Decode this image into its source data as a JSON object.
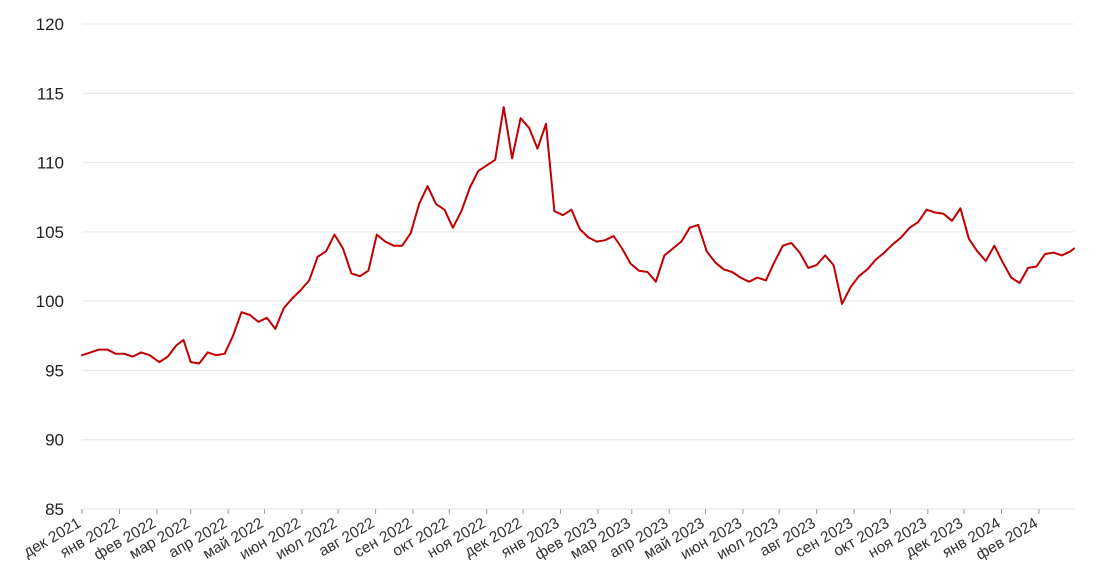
{
  "chart_data": {
    "type": "line",
    "title": "",
    "xlabel": "",
    "ylabel": "",
    "ylim": [
      85,
      120
    ],
    "yticks": [
      85,
      90,
      95,
      100,
      105,
      110,
      115,
      120
    ],
    "grid": true,
    "legend": "none",
    "x_tick_labels": [
      "дек 2021",
      "янв 2022",
      "фев 2022",
      "мар 2022",
      "апр 2022",
      "май 2022",
      "июн 2022",
      "июл 2022",
      "авг 2022",
      "сен 2022",
      "окт 2022",
      "ноя 2022",
      "дек 2022",
      "янв 2023",
      "фев 2023",
      "мар 2023",
      "апр 2023",
      "май 2023",
      "июн 2023",
      "июл 2023",
      "авг 2023",
      "сен 2023",
      "окт 2023",
      "ноя 2023",
      "дек 2023",
      "янв 2024",
      "фев 2024"
    ],
    "series": [
      {
        "color": "#c00000",
        "points": [
          [
            "2021-12-01",
            96.1
          ],
          [
            "2021-12-08",
            96.3
          ],
          [
            "2021-12-15",
            96.5
          ],
          [
            "2021-12-22",
            96.5
          ],
          [
            "2021-12-29",
            96.2
          ],
          [
            "2022-01-05",
            96.2
          ],
          [
            "2022-01-12",
            96.0
          ],
          [
            "2022-01-19",
            96.3
          ],
          [
            "2022-01-26",
            96.1
          ],
          [
            "2022-02-03",
            95.6
          ],
          [
            "2022-02-10",
            96.0
          ],
          [
            "2022-02-17",
            96.8
          ],
          [
            "2022-02-23",
            97.2
          ],
          [
            "2022-03-01",
            95.6
          ],
          [
            "2022-03-08",
            95.5
          ],
          [
            "2022-03-15",
            96.3
          ],
          [
            "2022-03-22",
            96.1
          ],
          [
            "2022-03-29",
            96.2
          ],
          [
            "2022-04-05",
            97.5
          ],
          [
            "2022-04-12",
            99.2
          ],
          [
            "2022-04-19",
            99.0
          ],
          [
            "2022-04-26",
            98.5
          ],
          [
            "2022-05-03",
            98.8
          ],
          [
            "2022-05-10",
            98.0
          ],
          [
            "2022-05-17",
            99.5
          ],
          [
            "2022-05-24",
            100.2
          ],
          [
            "2022-05-31",
            100.8
          ],
          [
            "2022-06-07",
            101.5
          ],
          [
            "2022-06-14",
            103.2
          ],
          [
            "2022-06-21",
            103.6
          ],
          [
            "2022-06-28",
            104.8
          ],
          [
            "2022-07-05",
            103.8
          ],
          [
            "2022-07-12",
            102.0
          ],
          [
            "2022-07-19",
            101.8
          ],
          [
            "2022-07-26",
            102.2
          ],
          [
            "2022-08-02",
            104.8
          ],
          [
            "2022-08-09",
            104.3
          ],
          [
            "2022-08-16",
            104.0
          ],
          [
            "2022-08-23",
            104.0
          ],
          [
            "2022-08-30",
            104.9
          ],
          [
            "2022-09-06",
            107.0
          ],
          [
            "2022-09-13",
            108.3
          ],
          [
            "2022-09-20",
            107.0
          ],
          [
            "2022-09-27",
            106.6
          ],
          [
            "2022-10-04",
            105.3
          ],
          [
            "2022-10-11",
            106.5
          ],
          [
            "2022-10-18",
            108.2
          ],
          [
            "2022-10-25",
            109.4
          ],
          [
            "2022-11-01",
            109.8
          ],
          [
            "2022-11-08",
            110.2
          ],
          [
            "2022-11-15",
            114.0
          ],
          [
            "2022-11-22",
            110.3
          ],
          [
            "2022-11-29",
            113.2
          ],
          [
            "2022-12-06",
            112.5
          ],
          [
            "2022-12-13",
            111.0
          ],
          [
            "2022-12-20",
            112.8
          ],
          [
            "2022-12-27",
            106.5
          ],
          [
            "2023-01-03",
            106.2
          ],
          [
            "2023-01-10",
            106.6
          ],
          [
            "2023-01-17",
            105.2
          ],
          [
            "2023-01-24",
            104.6
          ],
          [
            "2023-01-31",
            104.3
          ],
          [
            "2023-02-07",
            104.4
          ],
          [
            "2023-02-14",
            104.7
          ],
          [
            "2023-02-21",
            103.8
          ],
          [
            "2023-02-28",
            102.7
          ],
          [
            "2023-03-07",
            102.2
          ],
          [
            "2023-03-14",
            102.1
          ],
          [
            "2023-03-21",
            101.4
          ],
          [
            "2023-03-28",
            103.3
          ],
          [
            "2023-04-04",
            103.8
          ],
          [
            "2023-04-11",
            104.3
          ],
          [
            "2023-04-18",
            105.3
          ],
          [
            "2023-04-25",
            105.5
          ],
          [
            "2023-05-02",
            103.6
          ],
          [
            "2023-05-09",
            102.8
          ],
          [
            "2023-05-16",
            102.3
          ],
          [
            "2023-05-23",
            102.1
          ],
          [
            "2023-05-30",
            101.7
          ],
          [
            "2023-06-06",
            101.4
          ],
          [
            "2023-06-13",
            101.7
          ],
          [
            "2023-06-20",
            101.5
          ],
          [
            "2023-06-27",
            102.8
          ],
          [
            "2023-07-04",
            104.0
          ],
          [
            "2023-07-11",
            104.2
          ],
          [
            "2023-07-18",
            103.5
          ],
          [
            "2023-07-25",
            102.4
          ],
          [
            "2023-08-01",
            102.6
          ],
          [
            "2023-08-08",
            103.3
          ],
          [
            "2023-08-15",
            102.6
          ],
          [
            "2023-08-22",
            99.8
          ],
          [
            "2023-08-29",
            101.0
          ],
          [
            "2023-09-05",
            101.8
          ],
          [
            "2023-09-12",
            102.3
          ],
          [
            "2023-09-19",
            103.0
          ],
          [
            "2023-09-26",
            103.5
          ],
          [
            "2023-10-03",
            104.1
          ],
          [
            "2023-10-10",
            104.6
          ],
          [
            "2023-10-17",
            105.3
          ],
          [
            "2023-10-24",
            105.7
          ],
          [
            "2023-10-31",
            106.6
          ],
          [
            "2023-11-07",
            106.4
          ],
          [
            "2023-11-14",
            106.3
          ],
          [
            "2023-11-21",
            105.8
          ],
          [
            "2023-11-28",
            106.7
          ],
          [
            "2023-12-05",
            104.5
          ],
          [
            "2023-12-12",
            103.6
          ],
          [
            "2023-12-19",
            102.9
          ],
          [
            "2023-12-26",
            104.0
          ],
          [
            "2024-01-02",
            102.8
          ],
          [
            "2024-01-09",
            101.7
          ],
          [
            "2024-01-16",
            101.3
          ],
          [
            "2024-01-23",
            102.4
          ],
          [
            "2024-01-30",
            102.5
          ],
          [
            "2024-02-06",
            103.4
          ],
          [
            "2024-02-13",
            103.5
          ],
          [
            "2024-02-20",
            103.3
          ],
          [
            "2024-02-27",
            103.6
          ],
          [
            "2024-03-01",
            103.8
          ]
        ]
      }
    ]
  }
}
